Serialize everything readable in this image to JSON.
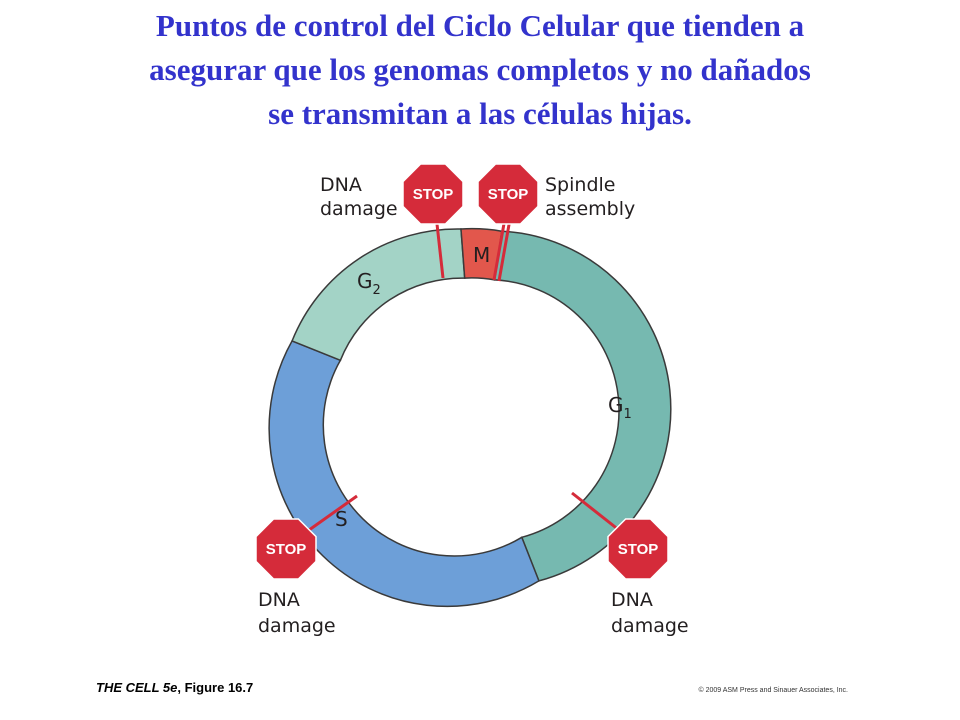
{
  "title": {
    "line1": "Puntos de control del Ciclo Celular que tienden a",
    "line2": "asegurar que los genomas completos y no dañados",
    "line3": "se transmitan a las células hijas."
  },
  "phases": {
    "m": "M",
    "g1": {
      "letter": "G",
      "sub": "1"
    },
    "g2": {
      "letter": "G",
      "sub": "2"
    },
    "s": "S"
  },
  "checkpoints": {
    "g2_dna_damage": {
      "sign": "STOP",
      "label_line1": "DNA",
      "label_line2": "damage"
    },
    "spindle_assembly": {
      "sign": "STOP",
      "label_line1": "Spindle",
      "label_line2": "assembly"
    },
    "s_dna_damage": {
      "sign": "STOP",
      "label_line1": "DNA",
      "label_line2": "damage"
    },
    "g1_dna_damage": {
      "sign": "STOP",
      "label_line1": "DNA",
      "label_line2": "damage"
    }
  },
  "colors": {
    "title": "#3333cc",
    "m_phase": "#e2574c",
    "g1_phase": "#76b9b0",
    "g2_phase": "#a3d3c6",
    "s_phase": "#6d9fd8",
    "stop_sign": "#d52b3a",
    "checkpoint_line": "#d52b3a"
  },
  "footer": {
    "book": "THE CELL 5e",
    "figure": ", Figure 16.7",
    "copyright": "© 2009 ASM Press and Sinauer Associates, Inc."
  }
}
